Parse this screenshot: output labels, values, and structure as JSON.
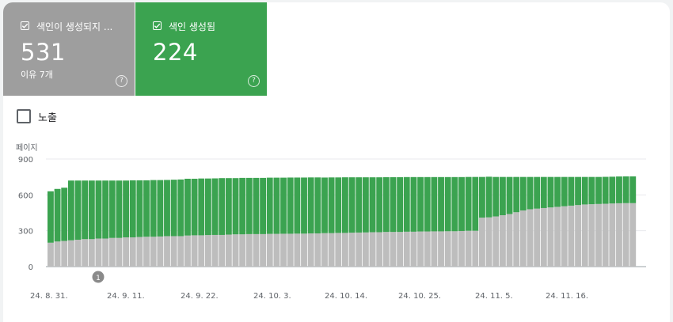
{
  "tiles": [
    {
      "label": "색인이 생성되지 ...",
      "value": "531",
      "sub": "이유 7개",
      "help": "?"
    },
    {
      "label": "색인 생성됨",
      "value": "224",
      "help": "?"
    }
  ],
  "impressions_label": "노출",
  "colors": {
    "not_indexed": "#bdbdbd",
    "indexed": "#3ba350",
    "tile_grey": "#9e9e9e"
  },
  "annotation": "1",
  "chart_data": {
    "type": "bar",
    "stacked": true,
    "ylabel": "페이지",
    "ylim": [
      0,
      900
    ],
    "yticks": [
      "900",
      "600",
      "300",
      "0"
    ],
    "xticks": [
      "24. 8. 31.",
      "24. 9. 11.",
      "24. 9. 22.",
      "24. 10. 3.",
      "24. 10. 14.",
      "24. 10. 25.",
      "24. 11. 5.",
      "24. 11. 16."
    ],
    "series": [
      {
        "name": "색인이 생성되지 않음",
        "values": [
          200,
          210,
          215,
          220,
          225,
          230,
          230,
          235,
          235,
          240,
          240,
          245,
          245,
          248,
          250,
          250,
          252,
          255,
          255,
          255,
          260,
          262,
          262,
          264,
          265,
          265,
          268,
          270,
          270,
          272,
          272,
          272,
          274,
          274,
          275,
          275,
          276,
          276,
          278,
          278,
          280,
          280,
          282,
          282,
          284,
          285,
          286,
          288,
          288,
          290,
          290,
          290,
          292,
          292,
          294,
          294,
          295,
          295,
          296,
          296,
          298,
          300,
          300,
          410,
          412,
          420,
          430,
          440,
          455,
          470,
          480,
          485,
          490,
          495,
          500,
          505,
          510,
          515,
          520,
          522,
          524,
          526,
          528,
          530,
          531,
          531
        ]
      },
      {
        "name": "색인 생성됨",
        "values": [
          430,
          440,
          445,
          500,
          495,
          490,
          490,
          485,
          485,
          480,
          480,
          475,
          477,
          474,
          472,
          474,
          472,
          470,
          472,
          474,
          475,
          473,
          475,
          473,
          473,
          475,
          472,
          470,
          472,
          470,
          470,
          470,
          470,
          470,
          469,
          470,
          469,
          469,
          468,
          468,
          465,
          466,
          464,
          465,
          463,
          462,
          461,
          459,
          459,
          458,
          458,
          458,
          457,
          457,
          455,
          455,
          454,
          454,
          453,
          453,
          451,
          450,
          450,
          340,
          340,
          330,
          320,
          310,
          295,
          280,
          270,
          265,
          260,
          255,
          250,
          245,
          240,
          235,
          230,
          228,
          226,
          225,
          224,
          224,
          224,
          224
        ]
      }
    ]
  }
}
